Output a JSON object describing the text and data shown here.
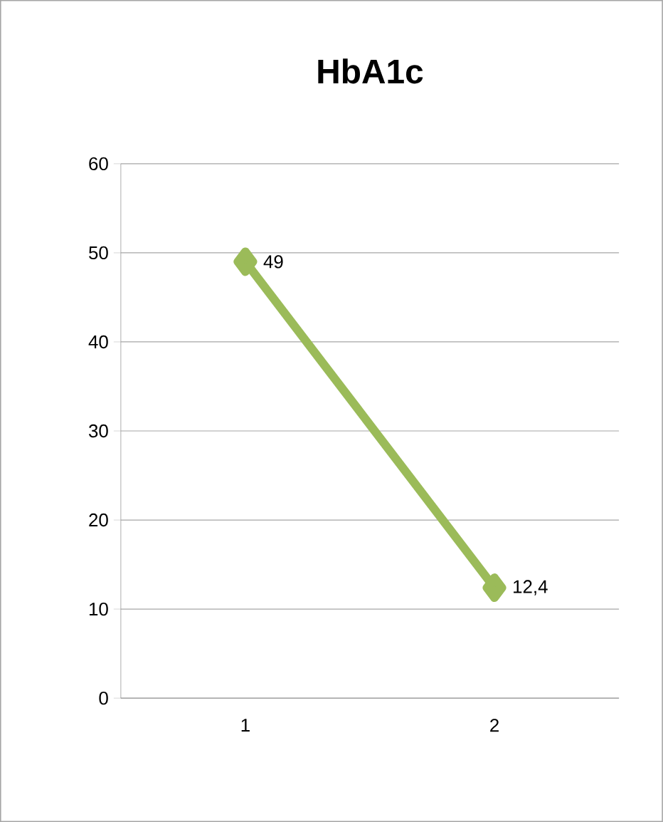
{
  "chart_data": {
    "type": "line",
    "title": "HbA1c",
    "categories": [
      "1",
      "2"
    ],
    "values": [
      49,
      12.4
    ],
    "value_labels": [
      "49",
      "12,4"
    ],
    "color": "#9bbb59",
    "marker": "diamond",
    "line_style": "solid",
    "ylim": [
      0,
      60
    ],
    "yticks": [
      0,
      10,
      20,
      30,
      40,
      50,
      60
    ],
    "grid": "y"
  }
}
